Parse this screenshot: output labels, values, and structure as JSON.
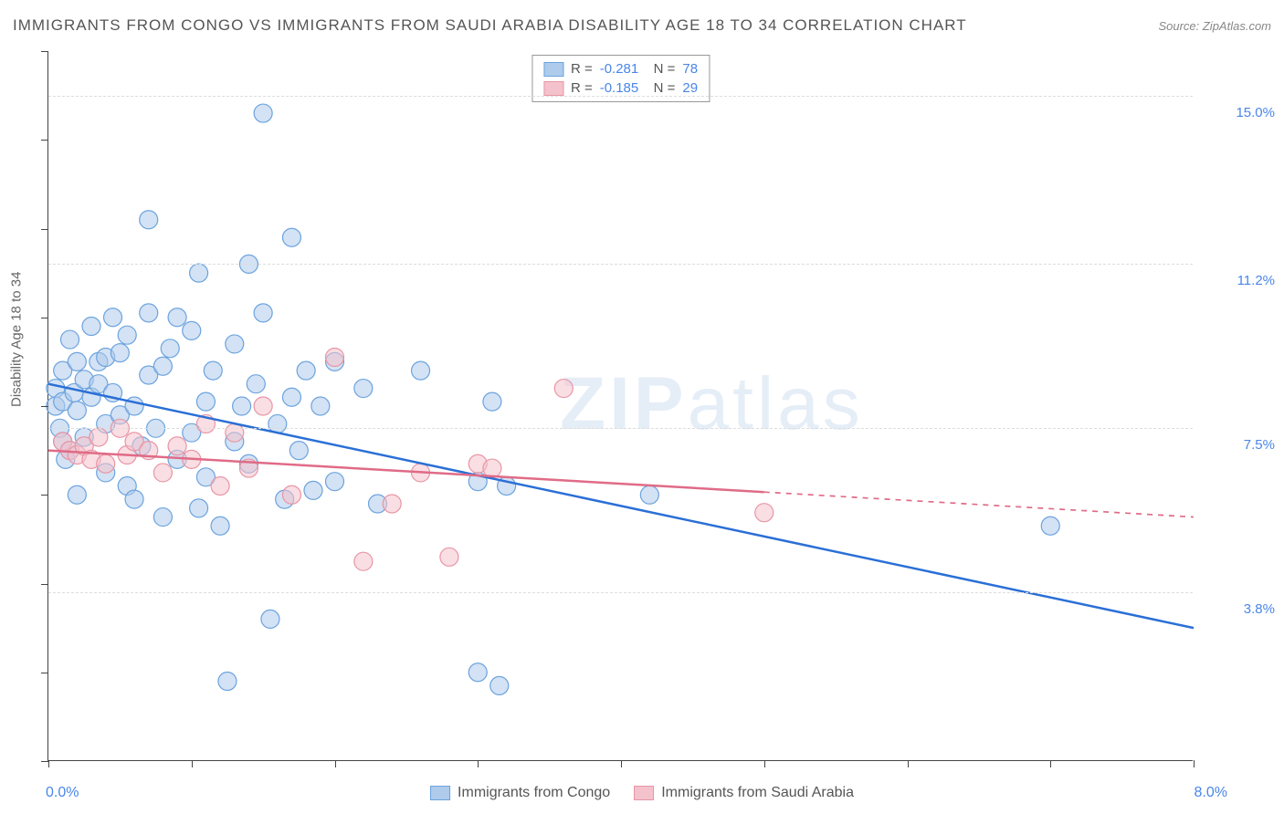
{
  "title": "IMMIGRANTS FROM CONGO VS IMMIGRANTS FROM SAUDI ARABIA DISABILITY AGE 18 TO 34 CORRELATION CHART",
  "source": "Source: ZipAtlas.com",
  "y_axis_label": "Disability Age 18 to 34",
  "watermark": "ZIPatlas",
  "chart": {
    "type": "scatter",
    "xlim": [
      0,
      8.0
    ],
    "ylim": [
      0,
      16.0
    ],
    "x_start_label": "0.0%",
    "x_end_label": "8.0%",
    "y_gridlines": [
      {
        "value": 15.0,
        "label": "15.0%"
      },
      {
        "value": 11.2,
        "label": "11.2%"
      },
      {
        "value": 7.5,
        "label": "7.5%"
      },
      {
        "value": 3.8,
        "label": "3.8%"
      }
    ],
    "x_ticks": [
      0,
      1,
      2,
      3,
      4,
      5,
      6,
      7,
      8
    ],
    "y_ticks": [
      0,
      2,
      4,
      6,
      8,
      10,
      12,
      14,
      16
    ],
    "background_color": "#ffffff",
    "grid_color": "#dddddd",
    "marker_radius": 10,
    "marker_stroke_width": 1.2,
    "trend_line_width": 2.5
  },
  "series": [
    {
      "name": "Immigrants from Congo",
      "fill": "#aecbeb",
      "stroke": "#6ba3de",
      "line_color": "#2a6fd6",
      "R": "-0.281",
      "N": "78",
      "trend": {
        "x1": 0.0,
        "y1": 8.5,
        "x2": 8.0,
        "y2": 3.0,
        "solid_to_x": 8.0
      },
      "points": [
        [
          0.05,
          8.4
        ],
        [
          0.05,
          8.0
        ],
        [
          0.08,
          7.5
        ],
        [
          0.1,
          7.2
        ],
        [
          0.1,
          8.8
        ],
        [
          0.1,
          8.1
        ],
        [
          0.15,
          7.0
        ],
        [
          0.12,
          6.8
        ],
        [
          0.15,
          9.5
        ],
        [
          0.18,
          8.3
        ],
        [
          0.2,
          7.9
        ],
        [
          0.2,
          9.0
        ],
        [
          0.25,
          8.6
        ],
        [
          0.25,
          7.3
        ],
        [
          0.3,
          9.8
        ],
        [
          0.3,
          8.2
        ],
        [
          0.35,
          9.0
        ],
        [
          0.35,
          8.5
        ],
        [
          0.4,
          7.6
        ],
        [
          0.4,
          6.5
        ],
        [
          0.4,
          9.1
        ],
        [
          0.45,
          10.0
        ],
        [
          0.45,
          8.3
        ],
        [
          0.5,
          7.8
        ],
        [
          0.5,
          9.2
        ],
        [
          0.55,
          6.2
        ],
        [
          0.55,
          9.6
        ],
        [
          0.6,
          8.0
        ],
        [
          0.6,
          5.9
        ],
        [
          0.65,
          7.1
        ],
        [
          0.7,
          8.7
        ],
        [
          0.7,
          10.1
        ],
        [
          0.75,
          7.5
        ],
        [
          0.8,
          8.9
        ],
        [
          0.8,
          5.5
        ],
        [
          0.85,
          9.3
        ],
        [
          0.9,
          6.8
        ],
        [
          0.9,
          10.0
        ],
        [
          1.0,
          7.4
        ],
        [
          1.0,
          9.7
        ],
        [
          1.05,
          11.0
        ],
        [
          1.05,
          5.7
        ],
        [
          1.1,
          8.1
        ],
        [
          1.1,
          6.4
        ],
        [
          1.15,
          8.8
        ],
        [
          1.2,
          5.3
        ],
        [
          1.25,
          1.8
        ],
        [
          1.3,
          7.2
        ],
        [
          1.3,
          9.4
        ],
        [
          1.35,
          8.0
        ],
        [
          1.4,
          11.2
        ],
        [
          1.4,
          6.7
        ],
        [
          1.45,
          8.5
        ],
        [
          1.5,
          14.6
        ],
        [
          1.5,
          10.1
        ],
        [
          1.55,
          3.2
        ],
        [
          1.6,
          7.6
        ],
        [
          1.65,
          5.9
        ],
        [
          1.7,
          11.8
        ],
        [
          1.7,
          8.2
        ],
        [
          1.75,
          7.0
        ],
        [
          1.8,
          8.8
        ],
        [
          1.85,
          6.1
        ],
        [
          1.9,
          8.0
        ],
        [
          2.0,
          6.3
        ],
        [
          2.0,
          9.0
        ],
        [
          2.2,
          8.4
        ],
        [
          2.3,
          5.8
        ],
        [
          2.6,
          8.8
        ],
        [
          3.0,
          2.0
        ],
        [
          3.0,
          6.3
        ],
        [
          3.1,
          8.1
        ],
        [
          3.15,
          1.7
        ],
        [
          3.2,
          6.2
        ],
        [
          4.2,
          6.0
        ],
        [
          7.0,
          5.3
        ],
        [
          0.7,
          12.2
        ],
        [
          0.2,
          6.0
        ]
      ]
    },
    {
      "name": "Immigrants from Saudi Arabia",
      "fill": "#f4c2cc",
      "stroke": "#e895a5",
      "line_color": "#e06b87",
      "R": "-0.185",
      "N": "29",
      "trend": {
        "x1": 0.0,
        "y1": 7.0,
        "x2": 8.0,
        "y2": 5.5,
        "solid_to_x": 5.0
      },
      "points": [
        [
          0.1,
          7.2
        ],
        [
          0.15,
          7.0
        ],
        [
          0.2,
          6.9
        ],
        [
          0.25,
          7.1
        ],
        [
          0.3,
          6.8
        ],
        [
          0.35,
          7.3
        ],
        [
          0.4,
          6.7
        ],
        [
          0.5,
          7.5
        ],
        [
          0.55,
          6.9
        ],
        [
          0.6,
          7.2
        ],
        [
          0.7,
          7.0
        ],
        [
          0.8,
          6.5
        ],
        [
          0.9,
          7.1
        ],
        [
          1.0,
          6.8
        ],
        [
          1.1,
          7.6
        ],
        [
          1.2,
          6.2
        ],
        [
          1.3,
          7.4
        ],
        [
          1.4,
          6.6
        ],
        [
          1.5,
          8.0
        ],
        [
          1.7,
          6.0
        ],
        [
          2.0,
          9.1
        ],
        [
          2.2,
          4.5
        ],
        [
          2.4,
          5.8
        ],
        [
          2.6,
          6.5
        ],
        [
          2.8,
          4.6
        ],
        [
          3.0,
          6.7
        ],
        [
          3.1,
          6.6
        ],
        [
          3.6,
          8.4
        ],
        [
          5.0,
          5.6
        ]
      ]
    }
  ],
  "legend_box": {
    "rows": [
      {
        "swatch_fill": "#aecbeb",
        "swatch_stroke": "#6ba3de",
        "R": "-0.281",
        "N": "78"
      },
      {
        "swatch_fill": "#f4c2cc",
        "swatch_stroke": "#e895a5",
        "R": "-0.185",
        "N": "29"
      }
    ]
  },
  "bottom_legend": [
    {
      "swatch_fill": "#aecbeb",
      "swatch_stroke": "#6ba3de",
      "label": "Immigrants from Congo"
    },
    {
      "swatch_fill": "#f4c2cc",
      "swatch_stroke": "#e895a5",
      "label": "Immigrants from Saudi Arabia"
    }
  ]
}
